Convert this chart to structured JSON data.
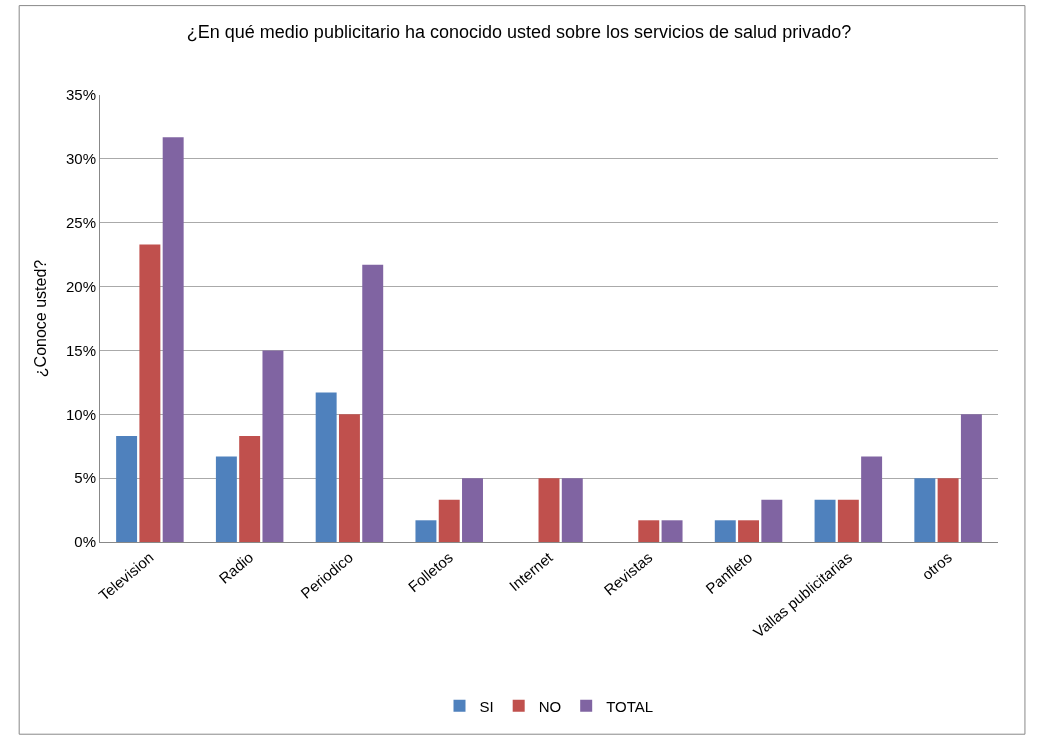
{
  "chart_data": {
    "type": "bar",
    "title": "¿En qué medio publicitario ha conocido usted sobre los servicios de salud privado?",
    "ylabel": "¿Conoce usted?",
    "categories": [
      "Television",
      "Radio",
      "Periodico",
      "Folletos",
      "Internet",
      "Revistas",
      "Panfleto",
      "Vallas publicitarias",
      "otros"
    ],
    "series": [
      {
        "name": "SI",
        "color": "#4f81bd",
        "values": [
          8.3,
          6.7,
          11.7,
          1.7,
          0,
          0,
          1.7,
          3.3,
          5.0
        ]
      },
      {
        "name": "NO",
        "color": "#c0504d",
        "values": [
          23.3,
          8.3,
          10.0,
          3.3,
          5.0,
          1.7,
          1.7,
          3.3,
          5.0
        ]
      },
      {
        "name": "TOTAL",
        "color": "#8064a2",
        "values": [
          31.7,
          15.0,
          21.7,
          5.0,
          5.0,
          1.7,
          3.3,
          6.7,
          10.0
        ]
      }
    ],
    "ylim": [
      0,
      35
    ],
    "yticks": [
      {
        "value": 0,
        "label": "0%"
      },
      {
        "value": 5,
        "label": "5%"
      },
      {
        "value": 10,
        "label": "10%"
      },
      {
        "value": 15,
        "label": "15%"
      },
      {
        "value": 20,
        "label": "20%"
      },
      {
        "value": 25,
        "label": "25%"
      },
      {
        "value": 30,
        "label": "30%"
      },
      {
        "value": 35,
        "label": "35%"
      }
    ],
    "grid": "y",
    "legend": "bottom"
  }
}
